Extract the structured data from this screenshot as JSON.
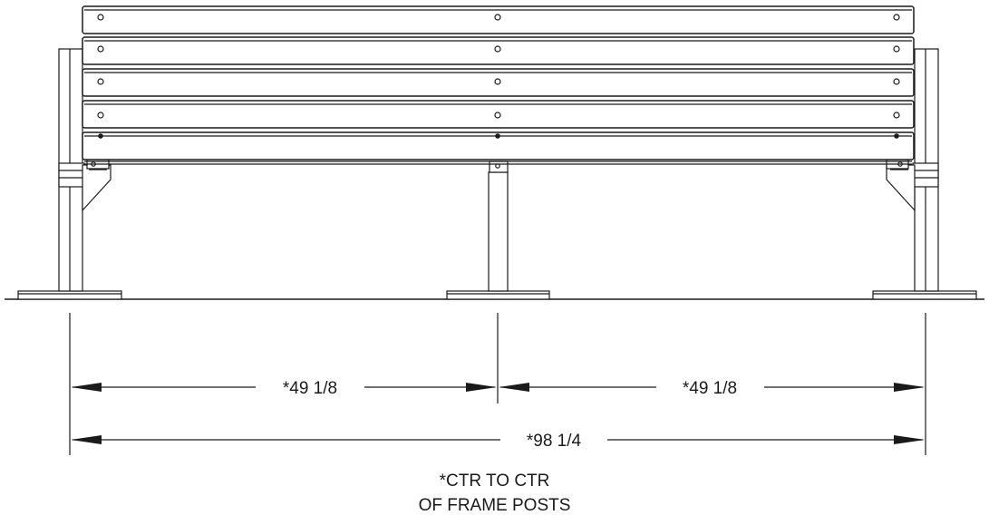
{
  "dimensions": {
    "left_span": "*49 1/8",
    "right_span": "*49 1/8",
    "overall": "*98 1/4"
  },
  "note": {
    "line1": "*CTR TO CTR",
    "line2": "OF FRAME POSTS"
  },
  "colors": {
    "line": "#1a1a1a",
    "background": "#ffffff"
  }
}
